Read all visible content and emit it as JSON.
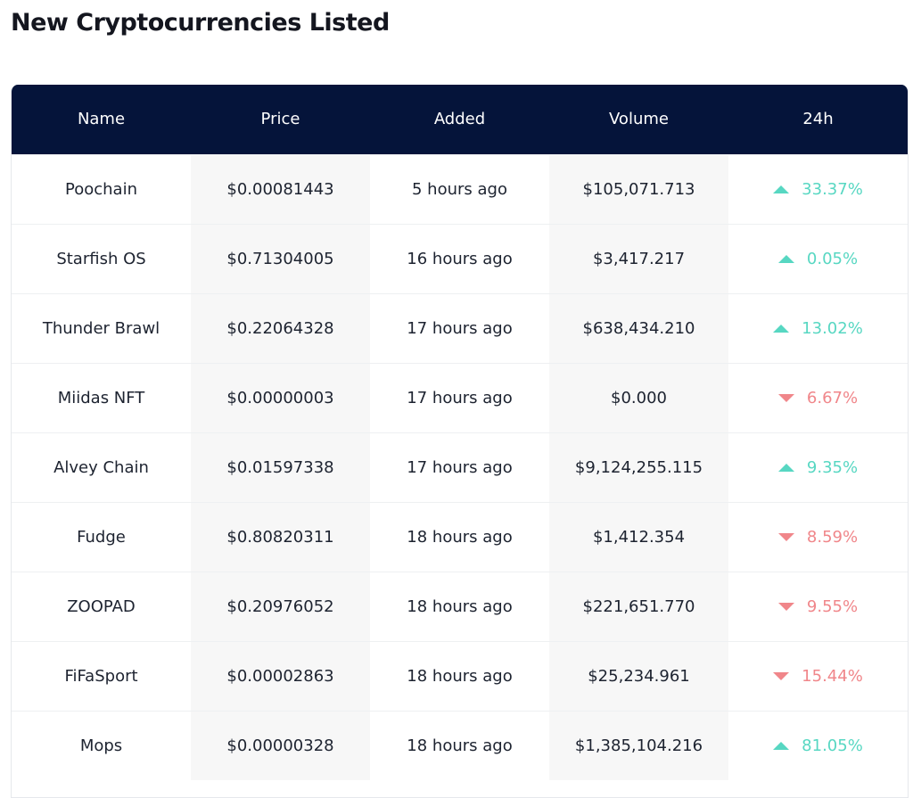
{
  "page": {
    "title": "New Cryptocurrencies Listed"
  },
  "table": {
    "headers": {
      "name": "Name",
      "price": "Price",
      "added": "Added",
      "volume": "Volume",
      "change": "24h"
    },
    "rows": [
      {
        "name": "Poochain",
        "price": "$0.00081443",
        "added": "5 hours ago",
        "volume": "$105,071.713",
        "change": "33.37%",
        "direction": "up"
      },
      {
        "name": "Starfish OS",
        "price": "$0.71304005",
        "added": "16 hours ago",
        "volume": "$3,417.217",
        "change": "0.05%",
        "direction": "up"
      },
      {
        "name": "Thunder Brawl",
        "price": "$0.22064328",
        "added": "17 hours ago",
        "volume": "$638,434.210",
        "change": "13.02%",
        "direction": "up"
      },
      {
        "name": "Miidas NFT",
        "price": "$0.00000003",
        "added": "17 hours ago",
        "volume": "$0.000",
        "change": "6.67%",
        "direction": "down"
      },
      {
        "name": "Alvey Chain",
        "price": "$0.01597338",
        "added": "17 hours ago",
        "volume": "$9,124,255.115",
        "change": "9.35%",
        "direction": "up"
      },
      {
        "name": "Fudge",
        "price": "$0.80820311",
        "added": "18 hours ago",
        "volume": "$1,412.354",
        "change": "8.59%",
        "direction": "down"
      },
      {
        "name": "ZOOPAD",
        "price": "$0.20976052",
        "added": "18 hours ago",
        "volume": "$221,651.770",
        "change": "9.55%",
        "direction": "down"
      },
      {
        "name": "FiFaSport",
        "price": "$0.00002863",
        "added": "18 hours ago",
        "volume": "$25,234.961",
        "change": "15.44%",
        "direction": "down"
      },
      {
        "name": "Mops",
        "price": "$0.00000328",
        "added": "18 hours ago",
        "volume": "$1,385,104.216",
        "change": "81.05%",
        "direction": "up"
      }
    ]
  },
  "colors": {
    "header_bg": "#05143a",
    "up": "#57d7c2",
    "down": "#f0868a",
    "shaded_column": "#f7f7f7"
  },
  "icons": {
    "up": "triangle-up-icon",
    "down": "triangle-down-icon"
  }
}
